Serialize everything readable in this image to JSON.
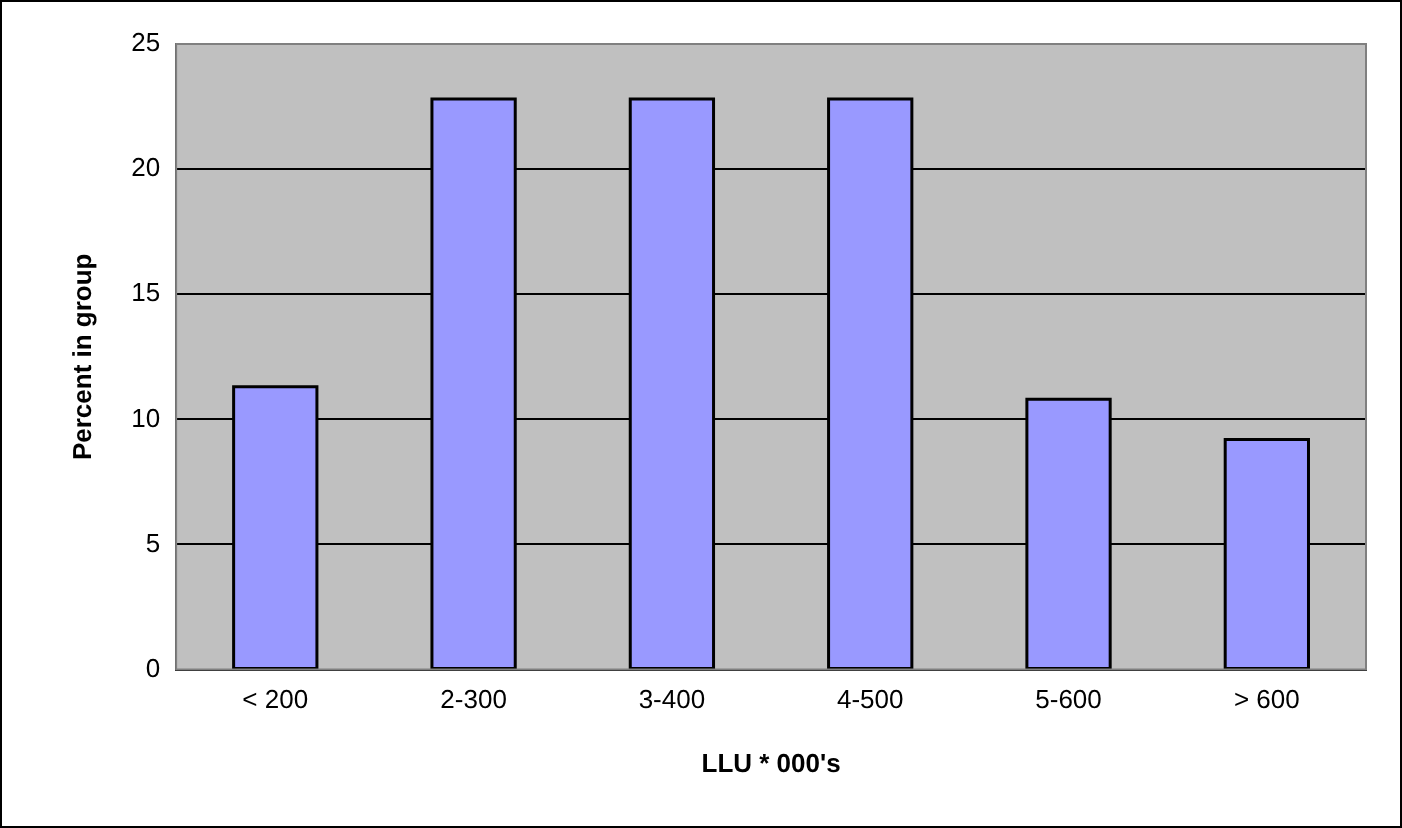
{
  "chart_data": {
    "type": "bar",
    "xlabel": "LLU * 000's",
    "ylabel": "Percent in group",
    "categories": [
      "< 200",
      "2-300",
      "3-400",
      "4-500",
      "5-600",
      "> 600"
    ],
    "values": [
      11.3,
      22.8,
      22.8,
      22.8,
      10.8,
      9.2
    ],
    "color": "#9999ff",
    "ylim": [
      0,
      25
    ],
    "yticks": [
      0,
      5,
      10,
      15,
      20,
      25
    ],
    "grid": "y",
    "legend": false
  }
}
